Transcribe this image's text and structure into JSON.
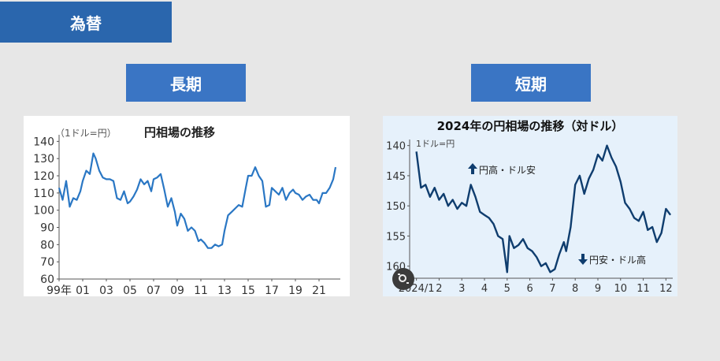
{
  "header": {
    "title": "為替",
    "long_label": "長期",
    "short_label": "短期"
  },
  "chart_data": [
    {
      "type": "line",
      "title": "円相場の推移",
      "ylabel": "（1ドル=円）",
      "x_tick_labels": [
        "99年",
        "01",
        "03",
        "05",
        "07",
        "09",
        "11",
        "13",
        "15",
        "17",
        "19",
        "21"
      ],
      "y_ticks": [
        60,
        70,
        80,
        90,
        100,
        110,
        120,
        130,
        140
      ],
      "ylim": [
        60,
        142
      ],
      "xlim": [
        1999.0,
        2022.8
      ],
      "color": "#2a77c4",
      "x": [
        1999.0,
        1999.3,
        1999.6,
        1999.9,
        2000.2,
        2000.5,
        2000.8,
        2001.0,
        2001.3,
        2001.6,
        2001.9,
        2002.1,
        2002.4,
        2002.7,
        2003.0,
        2003.3,
        2003.6,
        2003.9,
        2004.2,
        2004.5,
        2004.8,
        2005.0,
        2005.3,
        2005.6,
        2005.9,
        2006.2,
        2006.5,
        2006.8,
        2007.0,
        2007.3,
        2007.6,
        2007.9,
        2008.2,
        2008.5,
        2008.8,
        2009.0,
        2009.3,
        2009.6,
        2009.9,
        2010.2,
        2010.5,
        2010.8,
        2011.0,
        2011.3,
        2011.6,
        2011.9,
        2012.2,
        2012.5,
        2012.8,
        2013.0,
        2013.3,
        2013.6,
        2013.9,
        2014.2,
        2014.5,
        2014.8,
        2015.0,
        2015.3,
        2015.6,
        2015.9,
        2016.2,
        2016.5,
        2016.8,
        2017.0,
        2017.3,
        2017.6,
        2017.9,
        2018.2,
        2018.5,
        2018.8,
        2019.0,
        2019.3,
        2019.6,
        2019.9,
        2020.2,
        2020.5,
        2020.8,
        2021.0,
        2021.3,
        2021.6,
        2021.9,
        2022.2,
        2022.4
      ],
      "y": [
        113,
        106,
        117,
        102,
        107,
        106,
        111,
        117,
        123,
        121,
        133,
        130,
        123,
        119,
        118,
        118,
        117,
        107,
        106,
        111,
        104,
        105,
        108,
        112,
        118,
        115,
        117,
        111,
        118,
        119,
        121,
        112,
        102,
        107,
        99,
        91,
        98,
        95,
        88,
        90,
        88,
        82,
        83,
        81,
        78,
        78,
        80,
        79,
        80,
        88,
        97,
        99,
        101,
        103,
        102,
        113,
        120,
        120,
        125,
        120,
        117,
        102,
        103,
        113,
        111,
        109,
        113,
        106,
        110,
        112,
        110,
        109,
        106,
        108,
        109,
        106,
        106,
        104,
        110,
        110,
        113,
        118,
        125
      ]
    },
    {
      "type": "line",
      "title": "2024年の円相場の推移（対ドル）",
      "unit_label": "1ドル=円",
      "x_tick_labels": [
        "2024/1",
        "2",
        "3",
        "4",
        "5",
        "6",
        "7",
        "8",
        "9",
        "10",
        "11",
        "12"
      ],
      "y_ticks": [
        140,
        145,
        150,
        155,
        160
      ],
      "ylim": [
        139,
        162
      ],
      "y_inverted": true,
      "xlim": [
        0.7,
        12.3
      ],
      "color": "#0f3d6e",
      "annotation_up": "円高・ドル安",
      "annotation_down": "円安・ドル高",
      "x": [
        1.0,
        1.2,
        1.4,
        1.6,
        1.8,
        2.0,
        2.2,
        2.4,
        2.6,
        2.8,
        3.0,
        3.2,
        3.4,
        3.6,
        3.8,
        4.0,
        4.2,
        4.4,
        4.6,
        4.8,
        5.0,
        5.1,
        5.3,
        5.5,
        5.7,
        5.9,
        6.1,
        6.3,
        6.5,
        6.7,
        6.9,
        7.1,
        7.3,
        7.5,
        7.6,
        7.8,
        8.0,
        8.2,
        8.4,
        8.6,
        8.8,
        9.0,
        9.2,
        9.4,
        9.6,
        9.8,
        10.0,
        10.2,
        10.4,
        10.6,
        10.8,
        11.0,
        11.2,
        11.4,
        11.6,
        11.8,
        12.0,
        12.2
      ],
      "y": [
        141.0,
        147.0,
        146.5,
        148.5,
        147.0,
        149.0,
        148.0,
        150.0,
        149.0,
        150.5,
        149.5,
        150.0,
        146.5,
        148.5,
        151.0,
        151.5,
        152.0,
        153.0,
        155.0,
        155.5,
        161.0,
        155.0,
        157.0,
        156.5,
        155.5,
        157.0,
        157.5,
        158.5,
        160.0,
        159.5,
        161.0,
        160.5,
        158.0,
        156.0,
        157.5,
        153.5,
        146.5,
        145.0,
        148.0,
        145.5,
        144.0,
        141.5,
        142.5,
        140.0,
        142.0,
        143.5,
        146.0,
        149.5,
        150.5,
        152.0,
        152.5,
        151.0,
        154.0,
        153.5,
        156.0,
        154.5,
        150.5,
        151.5
      ]
    }
  ]
}
